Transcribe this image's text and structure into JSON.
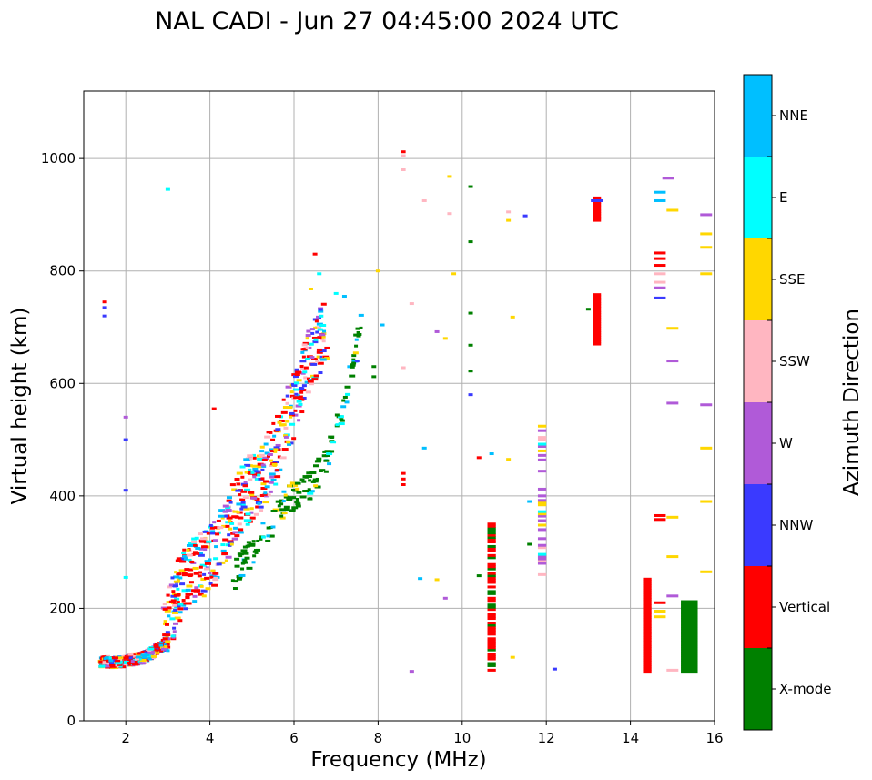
{
  "chart_data": {
    "type": "scatter",
    "title": "NAL CADI - Jun 27 04:45:00 2024 UTC",
    "xlabel": "Frequency (MHz)",
    "ylabel": "Virtual height (km)",
    "xlim": [
      1,
      16
    ],
    "ylim": [
      0,
      1120
    ],
    "xticks": [
      2,
      4,
      6,
      8,
      10,
      12,
      14,
      16
    ],
    "yticks": [
      0,
      200,
      400,
      600,
      800,
      1000
    ],
    "grid": true,
    "colorbar": {
      "label": "Azimuth Direction",
      "categories": [
        {
          "name": "X-mode",
          "color": "#008000"
        },
        {
          "name": "Vertical",
          "color": "#ff0000"
        },
        {
          "name": "NNW",
          "color": "#3a3aff"
        },
        {
          "name": "W",
          "color": "#b05ad8"
        },
        {
          "name": "SSW",
          "color": "#ffb6c1"
        },
        {
          "name": "SSE",
          "color": "#ffd700"
        },
        {
          "name": "E",
          "color": "#00ffff"
        },
        {
          "name": "NNE",
          "color": "#00bfff"
        }
      ]
    },
    "traces": [
      {
        "name": "E-region",
        "f_range": [
          1.4,
          3.0
        ],
        "h_range": [
          88,
          140
        ],
        "points": [
          [
            1.5,
            105
          ],
          [
            1.8,
            104
          ],
          [
            2.1,
            108
          ],
          [
            2.4,
            112
          ],
          [
            2.7,
            125
          ],
          [
            3.0,
            140
          ]
        ]
      },
      {
        "name": "F-region O trace",
        "f_range": [
          2.9,
          6.8
        ],
        "h_range": [
          140,
          700
        ],
        "points": [
          [
            3.0,
            180
          ],
          [
            3.3,
            240
          ],
          [
            3.7,
            270
          ],
          [
            4.0,
            285
          ],
          [
            4.4,
            340
          ],
          [
            4.8,
            400
          ],
          [
            5.2,
            430
          ],
          [
            5.6,
            480
          ],
          [
            6.0,
            560
          ],
          [
            6.4,
            650
          ],
          [
            6.8,
            700
          ]
        ]
      },
      {
        "name": "F-region X trace (X-mode)",
        "f_range": [
          4.5,
          7.6
        ],
        "h_range": [
          240,
          760
        ],
        "points": [
          [
            4.6,
            260
          ],
          [
            5.2,
            320
          ],
          [
            5.8,
            390
          ],
          [
            6.4,
            420
          ],
          [
            6.8,
            470
          ],
          [
            7.2,
            560
          ],
          [
            7.4,
            640
          ],
          [
            7.6,
            700
          ]
        ]
      },
      {
        "name": "Interference 10.7 MHz",
        "f_range": [
          10.6,
          10.8
        ],
        "h_range": [
          90,
          350
        ]
      },
      {
        "name": "Interference 11.9 MHz",
        "f_range": [
          11.8,
          12.0
        ],
        "h_range": [
          260,
          525
        ]
      },
      {
        "name": "Interference 13.2 MHz",
        "f_range": [
          13.1,
          13.3
        ],
        "h_range": [
          670,
          930
        ]
      },
      {
        "name": "Interference 14.4 MHz",
        "f_range": [
          14.3,
          14.5
        ],
        "h_range": [
          88,
          255
        ]
      },
      {
        "name": "Interference 15.4 MHz",
        "f_range": [
          15.2,
          15.6
        ],
        "h_range": [
          88,
          215
        ]
      }
    ]
  }
}
